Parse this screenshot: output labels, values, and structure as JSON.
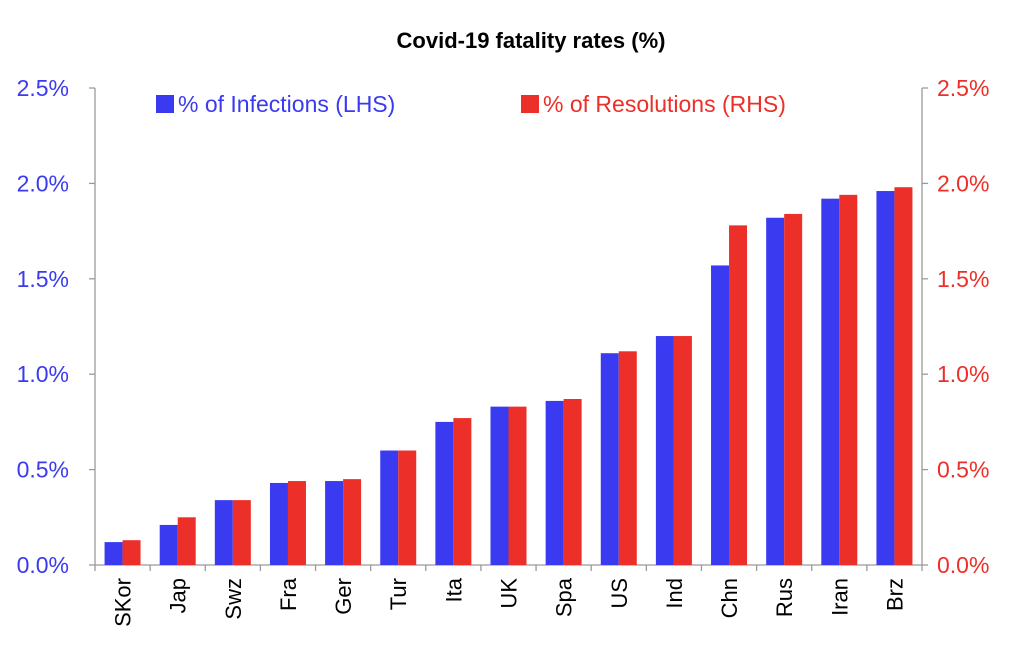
{
  "chart_data": {
    "type": "bar",
    "title": "Covid-19 fatality rates (%)",
    "categories": [
      "SKor",
      "Jap",
      "Swz",
      "Fra",
      "Ger",
      "Tur",
      "Ita",
      "UK",
      "Spa",
      "US",
      "Ind",
      "Chn",
      "Rus",
      "Iran",
      "Brz"
    ],
    "series": [
      {
        "name": "% of Infections (LHS)",
        "axis": "left",
        "color": "#3a3af0",
        "values": [
          0.12,
          0.21,
          0.34,
          0.43,
          0.44,
          0.6,
          0.75,
          0.83,
          0.86,
          1.11,
          1.2,
          1.57,
          1.82,
          1.92,
          1.96
        ]
      },
      {
        "name": "% of Resolutions (RHS)",
        "axis": "right",
        "color": "#ec2f28",
        "values": [
          0.13,
          0.25,
          0.34,
          0.44,
          0.45,
          0.6,
          0.77,
          0.83,
          0.87,
          1.12,
          1.2,
          1.78,
          1.84,
          1.94,
          1.98
        ]
      }
    ],
    "left_axis": {
      "ylim": [
        0,
        2.5
      ],
      "ticks": [
        "0.0%",
        "0.5%",
        "1.0%",
        "1.5%",
        "2.0%",
        "2.5%"
      ],
      "color": "#3a3af0"
    },
    "right_axis": {
      "ylim": [
        0,
        2.5
      ],
      "ticks": [
        "0.0%",
        "0.5%",
        "1.0%",
        "1.5%",
        "2.0%",
        "2.5%"
      ],
      "color": "#ec2f28"
    },
    "legend_position": "top",
    "grid": false
  }
}
